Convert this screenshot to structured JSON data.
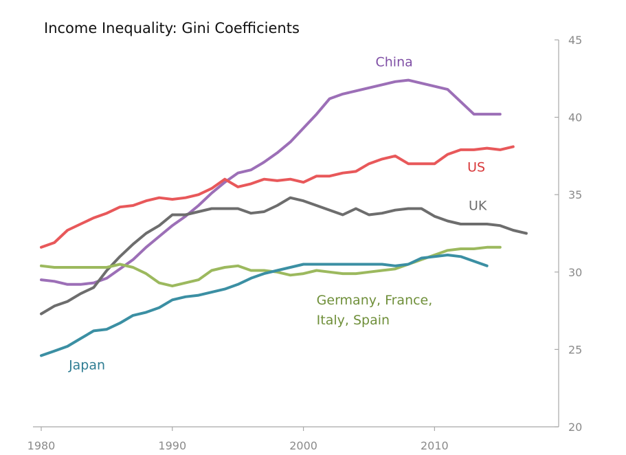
{
  "chart_data": {
    "type": "line",
    "title": "Income Inequality: Gini Coefficients",
    "xlabel": "",
    "ylabel": "",
    "xlim": [
      1980,
      2018
    ],
    "ylim": [
      20,
      45
    ],
    "xticks": [
      1980,
      1990,
      2000,
      2010
    ],
    "yticks": [
      20,
      25,
      30,
      35,
      40,
      45
    ],
    "y_axis_position": "right",
    "grid": false,
    "series": [
      {
        "name": "China",
        "color": "#9c6fb7",
        "x": [
          1980,
          1981,
          1982,
          1983,
          1984,
          1985,
          1986,
          1987,
          1988,
          1989,
          1990,
          1991,
          1992,
          1993,
          1994,
          1995,
          1996,
          1997,
          1998,
          1999,
          2000,
          2001,
          2002,
          2003,
          2004,
          2005,
          2006,
          2007,
          2008,
          2009,
          2010,
          2011,
          2012,
          2013,
          2014,
          2015
        ],
        "values": [
          29.5,
          29.4,
          29.2,
          29.2,
          29.3,
          29.6,
          30.2,
          30.8,
          31.6,
          32.3,
          33.0,
          33.6,
          34.3,
          35.1,
          35.8,
          36.4,
          36.6,
          37.1,
          37.7,
          38.4,
          39.3,
          40.2,
          41.2,
          41.5,
          41.7,
          41.9,
          42.1,
          42.3,
          42.4,
          42.2,
          42.0,
          41.8,
          41.0,
          40.2,
          40.2,
          40.2
        ]
      },
      {
        "name": "US",
        "color": "#e8585a",
        "x": [
          1980,
          1981,
          1982,
          1983,
          1984,
          1985,
          1986,
          1987,
          1988,
          1989,
          1990,
          1991,
          1992,
          1993,
          1994,
          1995,
          1996,
          1997,
          1998,
          1999,
          2000,
          2001,
          2002,
          2003,
          2004,
          2005,
          2006,
          2007,
          2008,
          2009,
          2010,
          2011,
          2012,
          2013,
          2014,
          2015,
          2016
        ],
        "values": [
          31.6,
          31.9,
          32.7,
          33.1,
          33.5,
          33.8,
          34.2,
          34.3,
          34.6,
          34.8,
          34.7,
          34.8,
          35.0,
          35.4,
          36.0,
          35.5,
          35.7,
          36.0,
          35.9,
          36.0,
          35.8,
          36.2,
          36.2,
          36.4,
          36.5,
          37.0,
          37.3,
          37.5,
          37.0,
          37.0,
          37.0,
          37.6,
          37.9,
          37.9,
          38.0,
          37.9,
          38.1
        ]
      },
      {
        "name": "UK",
        "color": "#6d6d6d",
        "x": [
          1980,
          1981,
          1982,
          1983,
          1984,
          1985,
          1986,
          1987,
          1988,
          1989,
          1990,
          1991,
          1992,
          1993,
          1994,
          1995,
          1996,
          1997,
          1998,
          1999,
          2000,
          2001,
          2002,
          2003,
          2004,
          2005,
          2006,
          2007,
          2008,
          2009,
          2010,
          2011,
          2012,
          2013,
          2014,
          2015,
          2016,
          2017
        ],
        "values": [
          27.3,
          27.8,
          28.1,
          28.6,
          29.0,
          30.1,
          31.0,
          31.8,
          32.5,
          33.0,
          33.7,
          33.7,
          33.9,
          34.1,
          34.1,
          34.1,
          33.8,
          33.9,
          34.3,
          34.8,
          34.6,
          34.3,
          34.0,
          33.7,
          34.1,
          33.7,
          33.8,
          34.0,
          34.1,
          34.1,
          33.6,
          33.3,
          33.1,
          33.1,
          33.1,
          33.0,
          32.7,
          32.5
        ]
      },
      {
        "name": "Germany, France, Italy, Spain",
        "color": "#9cb95e",
        "x": [
          1980,
          1981,
          1982,
          1983,
          1984,
          1985,
          1986,
          1987,
          1988,
          1989,
          1990,
          1991,
          1992,
          1993,
          1994,
          1995,
          1996,
          1997,
          1998,
          1999,
          2000,
          2001,
          2002,
          2003,
          2004,
          2005,
          2006,
          2007,
          2008,
          2009,
          2010,
          2011,
          2012,
          2013,
          2014,
          2015
        ],
        "values": [
          30.4,
          30.3,
          30.3,
          30.3,
          30.3,
          30.3,
          30.5,
          30.3,
          29.9,
          29.3,
          29.1,
          29.3,
          29.5,
          30.1,
          30.3,
          30.4,
          30.1,
          30.1,
          30.0,
          29.8,
          29.9,
          30.1,
          30.0,
          29.9,
          29.9,
          30.0,
          30.1,
          30.2,
          30.5,
          30.8,
          31.1,
          31.4,
          31.5,
          31.5,
          31.6,
          31.6
        ]
      },
      {
        "name": "Japan",
        "color": "#3b8fa3",
        "x": [
          1980,
          1981,
          1982,
          1983,
          1984,
          1985,
          1986,
          1987,
          1988,
          1989,
          1990,
          1991,
          1992,
          1993,
          1994,
          1995,
          1996,
          1997,
          1998,
          1999,
          2000,
          2001,
          2002,
          2003,
          2004,
          2005,
          2006,
          2007,
          2008,
          2009,
          2010,
          2011,
          2012,
          2013,
          2014
        ],
        "values": [
          24.6,
          24.9,
          25.2,
          25.7,
          26.2,
          26.3,
          26.7,
          27.2,
          27.4,
          27.7,
          28.2,
          28.4,
          28.5,
          28.7,
          28.9,
          29.2,
          29.6,
          29.9,
          30.1,
          30.3,
          30.5,
          30.5,
          30.5,
          30.5,
          30.5,
          30.5,
          30.5,
          30.4,
          30.5,
          30.9,
          31.0,
          31.1,
          31.0,
          30.7,
          30.4
        ]
      }
    ],
    "annotations": [
      {
        "series": "China",
        "text": "China",
        "color": "#7f4fa5",
        "anchor_year": 2005.5,
        "anchor_value": 43.3
      },
      {
        "series": "US",
        "text": "US",
        "color": "#d8383a",
        "anchor_year": 2012.5,
        "anchor_value": 36.5
      },
      {
        "series": "UK",
        "text": "UK",
        "color": "#6d6d6d",
        "anchor_year": 2012.6,
        "anchor_value": 34.0
      },
      {
        "series": "Germany, France, Italy, Spain",
        "text": "Germany, France,",
        "text2": "Italy, Spain",
        "color": "#6f8f3a",
        "anchor_year": 2001.0,
        "anchor_value": 27.9
      },
      {
        "series": "Japan",
        "text": "Japan",
        "color": "#2f7d93",
        "anchor_year": 1982.1,
        "anchor_value": 23.7
      }
    ]
  }
}
